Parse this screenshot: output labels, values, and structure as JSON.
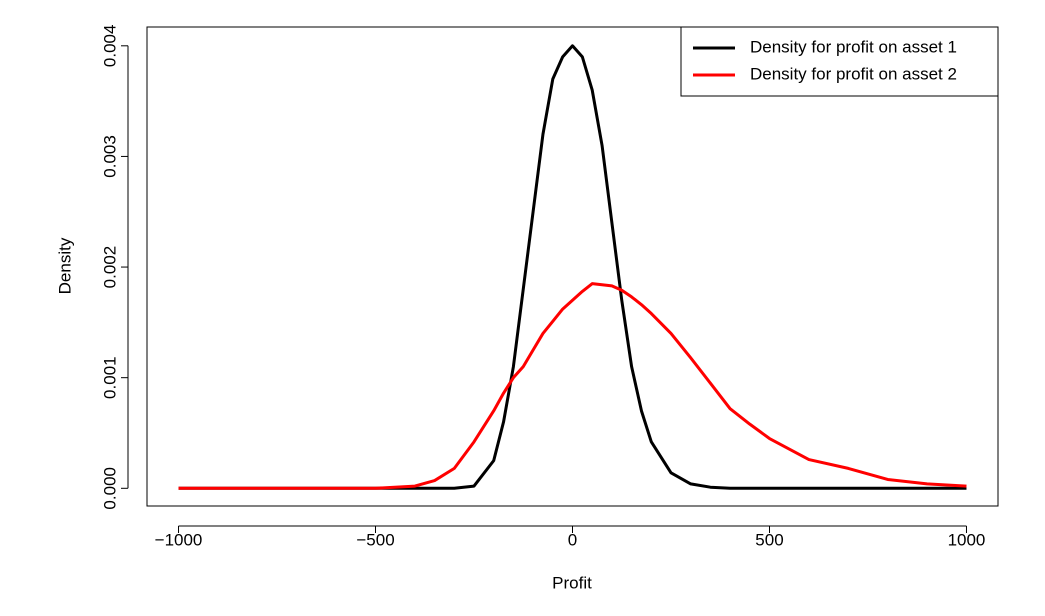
{
  "chart_data": {
    "type": "line",
    "x_label": "Profit",
    "y_label": "Density",
    "x": [
      -1000,
      -800,
      -600,
      -500,
      -400,
      -350,
      -300,
      -250,
      -200,
      -175,
      -150,
      -125,
      -100,
      -75,
      -50,
      -25,
      0,
      25,
      50,
      75,
      100,
      125,
      150,
      175,
      200,
      250,
      300,
      350,
      400,
      450,
      500,
      600,
      700,
      800,
      900,
      1000
    ],
    "series": [
      {
        "name": "Density for profit on asset 1",
        "color": "#000000",
        "values": [
          0,
          0,
          0,
          0,
          0,
          0,
          0,
          2e-05,
          0.00025,
          0.0006,
          0.0011,
          0.0018,
          0.0025,
          0.0032,
          0.0037,
          0.0039,
          0.004,
          0.0039,
          0.0036,
          0.0031,
          0.0024,
          0.0017,
          0.0011,
          0.0007,
          0.00042,
          0.00014,
          4e-05,
          1e-05,
          0,
          0,
          0,
          0,
          0,
          0,
          0,
          0
        ]
      },
      {
        "name": "Density for profit on asset 2",
        "color": "#ff0000",
        "values": [
          0,
          0,
          0,
          0,
          2e-05,
          7e-05,
          0.00018,
          0.00042,
          0.0007,
          0.00086,
          0.001,
          0.0011,
          0.00125,
          0.0014,
          0.00151,
          0.00162,
          0.0017,
          0.00178,
          0.00185,
          0.00184,
          0.00183,
          0.00179,
          0.00173,
          0.00166,
          0.00158,
          0.0014,
          0.00118,
          0.00095,
          0.00072,
          0.00058,
          0.00045,
          0.00026,
          0.00018,
          8e-05,
          4e-05,
          2e-05
        ]
      }
    ],
    "xlim": [
      -1080,
      1080
    ],
    "ylim": [
      -0.00016,
      0.00417
    ],
    "xticks": [
      {
        "value": -1000,
        "label": "−1000"
      },
      {
        "value": -500,
        "label": "−500"
      },
      0,
      500,
      1000
    ],
    "yticks": [
      {
        "value": 0,
        "label": "0.000"
      },
      {
        "value": 0.001,
        "label": "0.001"
      },
      {
        "value": 0.002,
        "label": "0.002"
      },
      {
        "value": 0.003,
        "label": "0.003"
      },
      {
        "value": 0.004,
        "label": "0.004"
      }
    ],
    "legend": "top-right"
  }
}
